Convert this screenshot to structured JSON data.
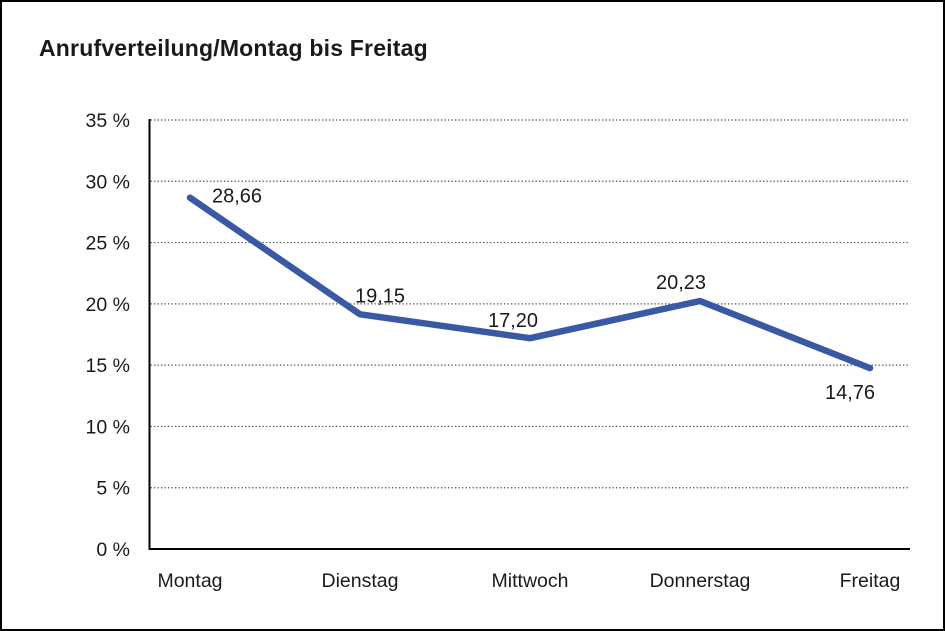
{
  "chart": {
    "title": "Anrufverteilung/Montag bis Freitag"
  },
  "chart_data": {
    "type": "line",
    "title": "Anrufverteilung/Montag bis Freitag",
    "categories": [
      "Montag",
      "Dienstag",
      "Mittwoch",
      "Donnerstag",
      "Freitag"
    ],
    "values": [
      28.66,
      19.15,
      17.2,
      20.23,
      14.76
    ],
    "point_labels": [
      "28,66",
      "19,15",
      "17,20",
      "20,23",
      "14,76"
    ],
    "xlabel": "",
    "ylabel": "",
    "ylim": [
      0,
      35
    ],
    "ytick_step": 5,
    "ytick_labels": [
      "0 %",
      "5 %",
      "10 %",
      "15 %",
      "20 %",
      "25 %",
      "30 %",
      "35 %"
    ],
    "grid": "horizontal-dotted",
    "legend": "none",
    "line_color": "#3A59A5",
    "grid_color": "#4a4a4a",
    "axis_color": "#000000",
    "text_color": "#1a1a1a"
  }
}
